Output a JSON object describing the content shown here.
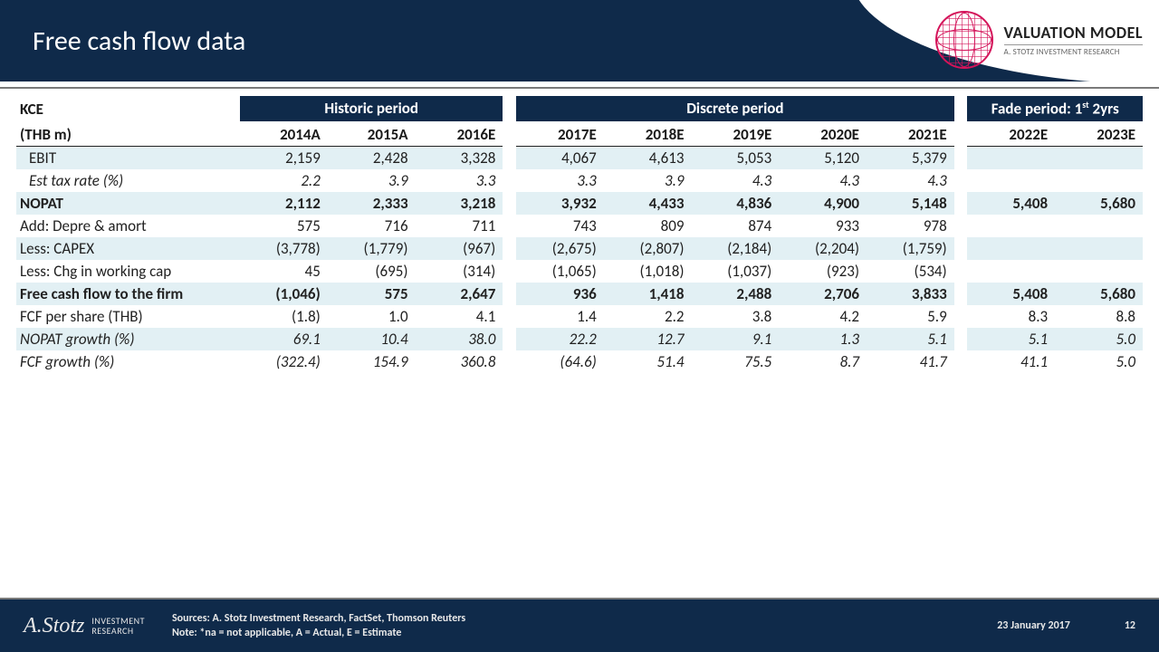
{
  "title": "Free cash flow data",
  "logo": {
    "line1": "VALUATION MODEL",
    "line2": "A. STOTZ INVESTMENT RESEARCH"
  },
  "table": {
    "ticker": "KCE",
    "unit": "(THB m)",
    "periods": [
      {
        "label": "Historic period",
        "years": [
          "2014A",
          "2015A",
          "2016E"
        ]
      },
      {
        "label": "Discrete period",
        "years": [
          "2017E",
          "2018E",
          "2019E",
          "2020E",
          "2021E"
        ]
      },
      {
        "label": "Fade period: 1st 2yrs",
        "sup": "st",
        "base": "Fade period: 1",
        "tail": " 2yrs",
        "years": [
          "2022E",
          "2023E"
        ]
      }
    ],
    "rows": [
      {
        "label": "EBIT",
        "indent": true,
        "shade": true,
        "vals": [
          "2,159",
          "2,428",
          "3,328",
          "4,067",
          "4,613",
          "5,053",
          "5,120",
          "5,379",
          "",
          ""
        ]
      },
      {
        "label": "Est tax rate (%)",
        "indent": true,
        "italic": true,
        "vals": [
          "2.2",
          "3.9",
          "3.3",
          "3.3",
          "3.9",
          "4.3",
          "4.3",
          "4.3",
          "",
          ""
        ]
      },
      {
        "label": "NOPAT",
        "bold": true,
        "shade": true,
        "vals": [
          "2,112",
          "2,333",
          "3,218",
          "3,932",
          "4,433",
          "4,836",
          "4,900",
          "5,148",
          "5,408",
          "5,680"
        ]
      },
      {
        "label": "Add: Depre & amort",
        "vals": [
          "575",
          "716",
          "711",
          "743",
          "809",
          "874",
          "933",
          "978",
          "",
          ""
        ]
      },
      {
        "label": "Less: CAPEX",
        "shade": true,
        "vals": [
          "(3,778)",
          "(1,779)",
          "(967)",
          "(2,675)",
          "(2,807)",
          "(2,184)",
          "(2,204)",
          "(1,759)",
          "",
          ""
        ]
      },
      {
        "label": "Less: Chg in working cap",
        "vals": [
          "45",
          "(695)",
          "(314)",
          "(1,065)",
          "(1,018)",
          "(1,037)",
          "(923)",
          "(534)",
          "",
          ""
        ]
      },
      {
        "label": "Free cash flow to the firm",
        "bold": true,
        "shade": true,
        "vals": [
          "(1,046)",
          "575",
          "2,647",
          "936",
          "1,418",
          "2,488",
          "2,706",
          "3,833",
          "5,408",
          "5,680"
        ]
      },
      {
        "label": "FCF per share (THB)",
        "vals": [
          "(1.8)",
          "1.0",
          "4.1",
          "1.4",
          "2.2",
          "3.8",
          "4.2",
          "5.9",
          "8.3",
          "8.8"
        ]
      },
      {
        "label": "NOPAT growth (%)",
        "italic": true,
        "shade": true,
        "vals": [
          "69.1",
          "10.4",
          "38.0",
          "22.2",
          "12.7",
          "9.1",
          "1.3",
          "5.1",
          "5.1",
          "5.0"
        ]
      },
      {
        "label": "FCF growth (%)",
        "italic": true,
        "vals": [
          "(322.4)",
          "154.9",
          "360.8",
          "(64.6)",
          "51.4",
          "75.5",
          "8.7",
          "41.7",
          "41.1",
          "5.0"
        ]
      }
    ]
  },
  "footer": {
    "sig": "A.Stotz",
    "brand1": "INVESTMENT",
    "brand2": "RESEARCH",
    "sources": "Sources: A. Stotz Investment Research, FactSet, Thomson Reuters",
    "note": "Note: *na = not applicable, A = Actual, E = Estimate",
    "date": "23 January 2017",
    "page": "12"
  },
  "colors": {
    "header_bg": "#0f2a4a",
    "shade_bg": "#e2f0f4",
    "accent": "#d4145a"
  }
}
